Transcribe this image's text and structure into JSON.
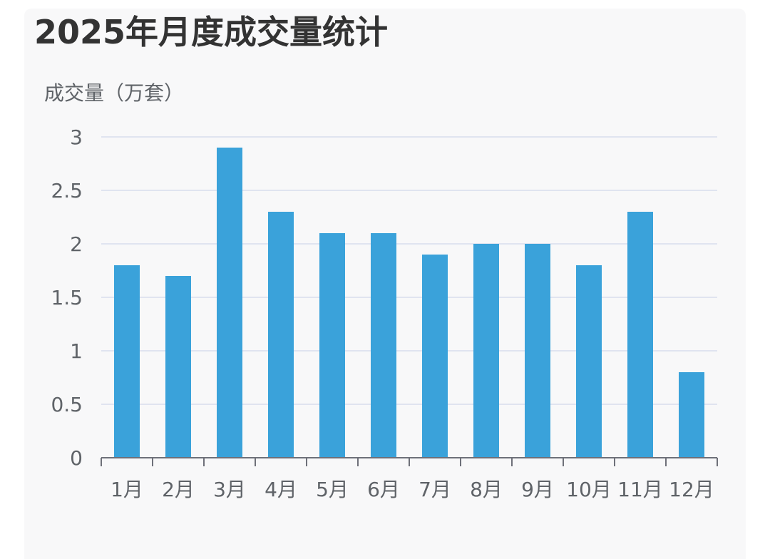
{
  "chart_data": {
    "type": "bar",
    "title": "2025年月度成交量统计",
    "ylabel": "成交量（万套）",
    "xlabel": "",
    "categories": [
      "1月",
      "2月",
      "3月",
      "4月",
      "5月",
      "6月",
      "7月",
      "8月",
      "9月",
      "10月",
      "11月",
      "12月"
    ],
    "values": [
      1.8,
      1.7,
      2.9,
      2.3,
      2.1,
      2.1,
      1.9,
      2.0,
      2.0,
      1.8,
      2.3,
      0.8
    ],
    "ylim": [
      0,
      3
    ],
    "yticks": [
      "0",
      "0.5",
      "1",
      "1.5",
      "2",
      "2.5",
      "3"
    ],
    "grid": true,
    "legend": "none",
    "colors": {
      "bar": "#3aa2da",
      "grid": "#e0e4f0",
      "axis": "#6e7079",
      "text": "#5f6368",
      "title": "#333333"
    }
  }
}
